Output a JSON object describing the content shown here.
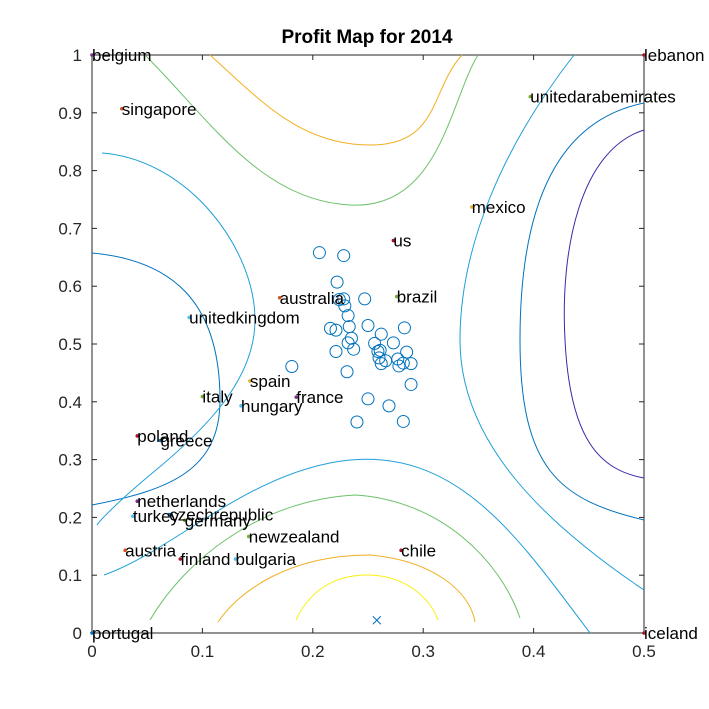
{
  "chart_data": {
    "type": "scatter",
    "title": "Profit Map for 2014",
    "xlabel": "",
    "ylabel": "",
    "xlim": [
      0,
      0.5
    ],
    "ylim": [
      0,
      1
    ],
    "x_ticks": [
      "0",
      "0.1",
      "0.2",
      "0.3",
      "0.4",
      "0.5"
    ],
    "y_ticks": [
      "0",
      "0.1",
      "0.2",
      "0.3",
      "0.4",
      "0.5",
      "0.6",
      "0.7",
      "0.8",
      "0.9",
      "1"
    ],
    "grid": false,
    "labeled_points": [
      {
        "label": "belgium",
        "x": 0.0,
        "y": 1.0,
        "color": "#7e2f8e"
      },
      {
        "label": "lebanon",
        "x": 0.5,
        "y": 1.0,
        "color": "#a2142f"
      },
      {
        "label": "singapore",
        "x": 0.027,
        "y": 0.907,
        "color": "#d95319"
      },
      {
        "label": "unitedarabemirates",
        "x": 0.397,
        "y": 0.928,
        "color": "#77ac30"
      },
      {
        "label": "mexico",
        "x": 0.344,
        "y": 0.737,
        "color": "#edb120"
      },
      {
        "label": "us",
        "x": 0.273,
        "y": 0.679,
        "color": "#a2142f"
      },
      {
        "label": "australia",
        "x": 0.17,
        "y": 0.58,
        "color": "#d95319"
      },
      {
        "label": "brazil",
        "x": 0.276,
        "y": 0.582,
        "color": "#77ac30"
      },
      {
        "label": "unitedkingdom",
        "x": 0.088,
        "y": 0.546,
        "color": "#4dbeee"
      },
      {
        "label": "spain",
        "x": 0.143,
        "y": 0.436,
        "color": "#edb120"
      },
      {
        "label": "france",
        "x": 0.185,
        "y": 0.408,
        "color": "#7e2f8e"
      },
      {
        "label": "italy",
        "x": 0.1,
        "y": 0.409,
        "color": "#77ac30"
      },
      {
        "label": "hungary",
        "x": 0.135,
        "y": 0.393,
        "color": "#4dbeee"
      },
      {
        "label": "poland",
        "x": 0.041,
        "y": 0.341,
        "color": "#a2142f"
      },
      {
        "label": "greece",
        "x": 0.062,
        "y": 0.333,
        "color": "#0072bd"
      },
      {
        "label": "netherlands",
        "x": 0.041,
        "y": 0.228,
        "color": "#7e2f8e"
      },
      {
        "label": "czechrepublic",
        "x": 0.07,
        "y": 0.205,
        "color": "#0072bd"
      },
      {
        "label": "turkey",
        "x": 0.037,
        "y": 0.202,
        "color": "#4dbeee"
      },
      {
        "label": "germany",
        "x": 0.084,
        "y": 0.195,
        "color": "#77ac30"
      },
      {
        "label": "newzealand",
        "x": 0.142,
        "y": 0.167,
        "color": "#77ac30"
      },
      {
        "label": "chile",
        "x": 0.28,
        "y": 0.143,
        "color": "#a2142f"
      },
      {
        "label": "austria",
        "x": 0.03,
        "y": 0.143,
        "color": "#d95319"
      },
      {
        "label": "finland",
        "x": 0.08,
        "y": 0.128,
        "color": "#a2142f"
      },
      {
        "label": "bulgaria",
        "x": 0.13,
        "y": 0.128,
        "color": "#4dbeee"
      },
      {
        "label": "portugal",
        "x": 0.0,
        "y": 0.0,
        "color": "#0072bd"
      },
      {
        "label": "iceland",
        "x": 0.5,
        "y": 0.0,
        "color": "#a2142f"
      }
    ],
    "circles": {
      "color": "#0072bd",
      "points": [
        [
          0.206,
          0.658
        ],
        [
          0.228,
          0.653
        ],
        [
          0.222,
          0.607
        ],
        [
          0.224,
          0.577
        ],
        [
          0.229,
          0.566
        ],
        [
          0.228,
          0.578
        ],
        [
          0.232,
          0.549
        ],
        [
          0.233,
          0.53
        ],
        [
          0.216,
          0.527
        ],
        [
          0.221,
          0.524
        ],
        [
          0.25,
          0.532
        ],
        [
          0.262,
          0.517
        ],
        [
          0.235,
          0.51
        ],
        [
          0.232,
          0.502
        ],
        [
          0.237,
          0.491
        ],
        [
          0.221,
          0.487
        ],
        [
          0.256,
          0.501
        ],
        [
          0.259,
          0.487
        ],
        [
          0.26,
          0.476
        ],
        [
          0.266,
          0.471
        ],
        [
          0.262,
          0.466
        ],
        [
          0.273,
          0.502
        ],
        [
          0.277,
          0.474
        ],
        [
          0.285,
          0.486
        ],
        [
          0.282,
          0.467
        ],
        [
          0.289,
          0.466
        ],
        [
          0.283,
          0.528
        ],
        [
          0.231,
          0.452
        ],
        [
          0.181,
          0.461
        ],
        [
          0.278,
          0.462
        ],
        [
          0.261,
          0.489
        ],
        [
          0.289,
          0.43
        ],
        [
          0.25,
          0.405
        ],
        [
          0.269,
          0.393
        ],
        [
          0.24,
          0.365
        ],
        [
          0.282,
          0.366
        ],
        [
          0.247,
          0.578
        ]
      ]
    },
    "cross_marker": {
      "x": 0.258,
      "y": 0.022,
      "color": "#0072bd"
    },
    "contour_colors": [
      "#3e26a8",
      "#0072bd",
      "#1f9fd8",
      "#6cc16a",
      "#f0b020",
      "#f8f010"
    ]
  }
}
